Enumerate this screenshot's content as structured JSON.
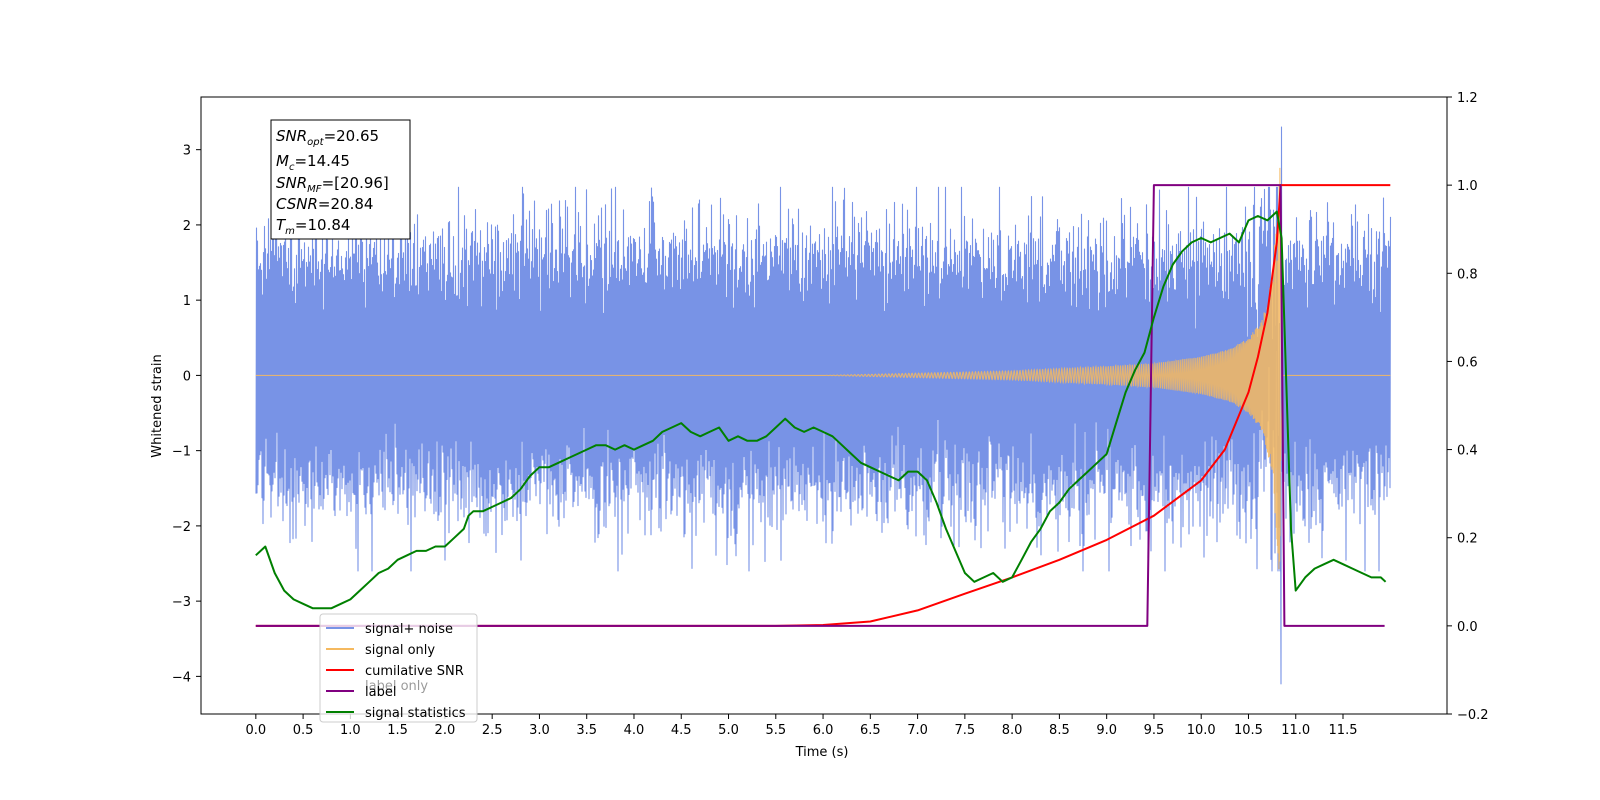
{
  "chart_data": {
    "type": "line",
    "xlabel": "Time (s)",
    "ylabel": "Whitened strain",
    "xlim": [
      -0.58,
      12.6
    ],
    "ylim": [
      -4.5,
      3.7
    ],
    "y2lim": [
      -0.2,
      1.2
    ],
    "x_ticks": [
      0.0,
      0.5,
      1.0,
      1.5,
      2.0,
      2.5,
      3.0,
      3.5,
      4.0,
      4.5,
      5.0,
      5.5,
      6.0,
      6.5,
      7.0,
      7.5,
      8.0,
      8.5,
      9.0,
      9.5,
      10.0,
      10.5,
      11.0,
      11.5
    ],
    "x_tick_labels": [
      "0.0",
      "0.5",
      "1.0",
      "1.5",
      "2.0",
      "2.5",
      "3.0",
      "3.5",
      "4.0",
      "4.5",
      "5.0",
      "5.5",
      "6.0",
      "6.5",
      "7.0",
      "7.5",
      "8.0",
      "8.5",
      "9.0",
      "9.5",
      "10.0",
      "10.5",
      "11.0",
      "11.5"
    ],
    "y_ticks": [
      -4,
      -3,
      -2,
      -1,
      0,
      1,
      2,
      3
    ],
    "y_tick_labels": [
      "−4",
      "−3",
      "−2",
      "−1",
      "0",
      "1",
      "2",
      "3"
    ],
    "y2_ticks": [
      -0.2,
      0.0,
      0.2,
      0.4,
      0.6,
      0.8,
      1.0,
      1.2
    ],
    "y2_tick_labels": [
      "−0.2",
      "0.0",
      "0.2",
      "0.4",
      "0.6",
      "0.8",
      "1.0",
      "1.2"
    ],
    "info_box": [
      "SNR_opt=20.65",
      "M_c=14.45",
      "SNR_MF=[20.96]",
      "CSNR=20.84",
      "T_m=10.84"
    ],
    "legend_placement": "lower-left",
    "series": [
      {
        "name": "signal+ noise",
        "axis": "left",
        "color": "#7893e6",
        "kind": "noise",
        "x_range": [
          0.0,
          12.0
        ],
        "band": [
          -1.2,
          1.3
        ],
        "y_min": -4.1,
        "y_max": 3.3
      },
      {
        "name": "signal only",
        "axis": "left",
        "color": "#f5b95f",
        "kind": "chirp",
        "x_range": [
          0.0,
          12.0
        ],
        "merger_time": 10.84,
        "amplitude_envelope": {
          "x": [
            0.0,
            6.0,
            7.0,
            8.0,
            9.0,
            9.5,
            10.0,
            10.3,
            10.5,
            10.65,
            10.75,
            10.8,
            10.84,
            10.86
          ],
          "y": [
            0.0,
            0.0,
            0.03,
            0.06,
            0.12,
            0.16,
            0.25,
            0.35,
            0.5,
            0.75,
            1.3,
            2.2,
            2.9,
            0.0
          ]
        }
      },
      {
        "name": "cumilative SNR",
        "axis": "right",
        "color": "#ff0000",
        "x": [
          0.0,
          5.5,
          6.0,
          6.5,
          7.0,
          7.5,
          8.0,
          8.5,
          9.0,
          9.5,
          10.0,
          10.25,
          10.5,
          10.6,
          10.7,
          10.8,
          10.84,
          12.0
        ],
        "y": [
          0.0,
          0.0,
          0.002,
          0.01,
          0.035,
          0.073,
          0.11,
          0.15,
          0.195,
          0.25,
          0.33,
          0.4,
          0.53,
          0.61,
          0.71,
          0.87,
          1.0,
          1.0
        ]
      },
      {
        "name": "label",
        "axis": "right",
        "color": "#800080",
        "x": [
          0.0,
          9.43,
          9.5,
          10.84,
          10.88,
          11.94
        ],
        "y": [
          0.0,
          0.0,
          1.0,
          1.0,
          0.0,
          0.0
        ]
      },
      {
        "name": "signal statistics",
        "axis": "right",
        "color": "#008000",
        "x": [
          0.0,
          0.05,
          0.1,
          0.2,
          0.3,
          0.4,
          0.5,
          0.6,
          0.7,
          0.8,
          0.9,
          1.0,
          1.1,
          1.2,
          1.3,
          1.4,
          1.5,
          1.6,
          1.7,
          1.8,
          1.9,
          2.0,
          2.1,
          2.2,
          2.25,
          2.3,
          2.4,
          2.5,
          2.6,
          2.7,
          2.8,
          2.9,
          3.0,
          3.1,
          3.2,
          3.3,
          3.4,
          3.5,
          3.6,
          3.7,
          3.8,
          3.9,
          4.0,
          4.1,
          4.2,
          4.3,
          4.4,
          4.5,
          4.6,
          4.7,
          4.8,
          4.9,
          5.0,
          5.1,
          5.2,
          5.3,
          5.4,
          5.5,
          5.6,
          5.7,
          5.8,
          5.9,
          6.0,
          6.1,
          6.2,
          6.3,
          6.4,
          6.5,
          6.6,
          6.7,
          6.8,
          6.9,
          7.0,
          7.1,
          7.2,
          7.3,
          7.4,
          7.5,
          7.6,
          7.7,
          7.8,
          7.9,
          8.0,
          8.1,
          8.2,
          8.3,
          8.4,
          8.5,
          8.6,
          8.7,
          8.8,
          8.9,
          9.0,
          9.1,
          9.2,
          9.3,
          9.4,
          9.5,
          9.6,
          9.7,
          9.8,
          9.9,
          10.0,
          10.1,
          10.2,
          10.3,
          10.4,
          10.5,
          10.6,
          10.7,
          10.8,
          10.85,
          10.9,
          10.95,
          11.0,
          11.1,
          11.2,
          11.3,
          11.4,
          11.5,
          11.6,
          11.7,
          11.8,
          11.9,
          11.95
        ],
        "y": [
          0.16,
          0.17,
          0.18,
          0.12,
          0.08,
          0.06,
          0.05,
          0.04,
          0.04,
          0.04,
          0.05,
          0.06,
          0.08,
          0.1,
          0.12,
          0.13,
          0.15,
          0.16,
          0.17,
          0.17,
          0.18,
          0.18,
          0.2,
          0.22,
          0.25,
          0.26,
          0.26,
          0.27,
          0.28,
          0.29,
          0.31,
          0.34,
          0.36,
          0.36,
          0.37,
          0.38,
          0.39,
          0.4,
          0.41,
          0.41,
          0.4,
          0.41,
          0.4,
          0.41,
          0.42,
          0.44,
          0.45,
          0.46,
          0.44,
          0.43,
          0.44,
          0.45,
          0.42,
          0.43,
          0.42,
          0.42,
          0.43,
          0.45,
          0.47,
          0.45,
          0.44,
          0.45,
          0.44,
          0.43,
          0.41,
          0.39,
          0.37,
          0.36,
          0.35,
          0.34,
          0.33,
          0.35,
          0.35,
          0.33,
          0.28,
          0.22,
          0.17,
          0.12,
          0.1,
          0.11,
          0.12,
          0.1,
          0.11,
          0.15,
          0.19,
          0.22,
          0.26,
          0.28,
          0.31,
          0.33,
          0.35,
          0.37,
          0.39,
          0.46,
          0.53,
          0.58,
          0.62,
          0.7,
          0.77,
          0.82,
          0.85,
          0.87,
          0.88,
          0.87,
          0.88,
          0.89,
          0.87,
          0.92,
          0.93,
          0.92,
          0.94,
          0.88,
          0.55,
          0.22,
          0.08,
          0.11,
          0.13,
          0.14,
          0.15,
          0.14,
          0.13,
          0.12,
          0.11,
          0.11,
          0.1
        ]
      }
    ],
    "legend_entries": [
      "signal+ noise",
      "signal only",
      "cumilative SNR",
      "label",
      "signal statistics"
    ],
    "hidden_legend_text": "label only"
  }
}
